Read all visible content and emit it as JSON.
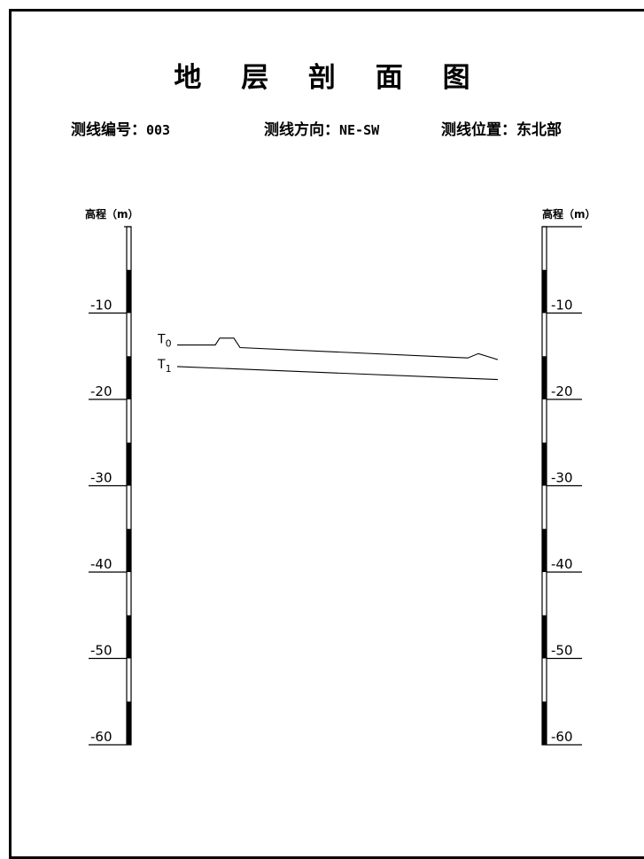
{
  "title": "地 层 剖 面 图",
  "info": {
    "line_number_label": "测线编号：",
    "line_number_value": "003",
    "line_direction_label": "测线方向：",
    "line_direction_value": "NE-SW",
    "line_location_label": "测线位置：",
    "line_location_value": "东北部"
  },
  "axis": {
    "label": "高程（m）",
    "unit_note": "m",
    "ticks": [
      -10,
      -20,
      -30,
      -40,
      -50,
      -60
    ],
    "range": [
      0,
      -60
    ]
  },
  "horizons": [
    {
      "name": "T0",
      "depth_m": [
        -13.7,
        -13.7,
        -12.9,
        -12.9,
        -14.0,
        -15.2,
        -14.7,
        -15.4
      ]
    },
    {
      "name": "T1",
      "depth_m": [
        -16.2,
        -17.7
      ]
    }
  ]
}
